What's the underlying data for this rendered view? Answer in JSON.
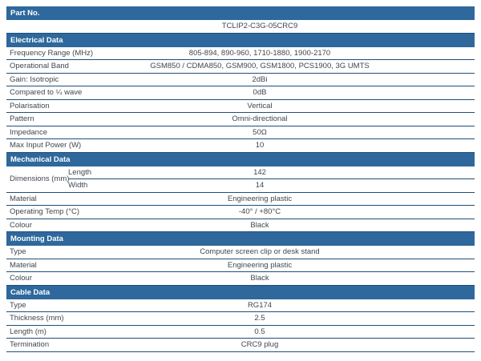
{
  "colors": {
    "header_bg": "#2E689C",
    "header_text": "#FFFFFF",
    "border": "#1F4E79",
    "text": "#40474F",
    "background": "#FFFFFF"
  },
  "table": {
    "sections": [
      {
        "title": "Part No.",
        "rows": [
          {
            "type": "full",
            "value": "TCLIP2-C3G-05CRC9"
          }
        ]
      },
      {
        "title": "Electrical Data",
        "rows": [
          {
            "label": "Frequency Range (MHz)",
            "value": "805-894, 890-960, 1710-1880, 1900-2170"
          },
          {
            "label": "Operational Band",
            "value": "GSM850 / CDMA850, GSM900, GSM1800, PCS1900, 3G UMTS"
          },
          {
            "label": "Gain: Isotropic",
            "value": "2dBi"
          },
          {
            "label": "Compared to ¼ wave",
            "value": "0dB"
          },
          {
            "label": "Polarisation",
            "value": "Vertical"
          },
          {
            "label": "Pattern",
            "value": "Omni-directional"
          },
          {
            "label": "Impedance",
            "value": "50Ω"
          },
          {
            "label": "Max Input Power (W)",
            "value": "10"
          }
        ]
      },
      {
        "title": "Mechanical Data",
        "rows": [
          {
            "type": "group",
            "label": "Dimensions (mm)",
            "subrows": [
              {
                "label": "Length",
                "value": "142"
              },
              {
                "label": "Width",
                "value": "14"
              }
            ]
          },
          {
            "label": "Material",
            "value": "Engineering plastic"
          },
          {
            "label": "Operating Temp (°C)",
            "value": "-40° / +80°C"
          },
          {
            "label": "Colour",
            "value": "Black"
          }
        ]
      },
      {
        "title": "Mounting Data",
        "rows": [
          {
            "label": "Type",
            "value": "Computer screen clip or desk stand"
          },
          {
            "label": "Material",
            "value": "Engineering plastic"
          },
          {
            "label": "Colour",
            "value": "Black"
          }
        ]
      },
      {
        "title": "Cable Data",
        "rows": [
          {
            "label": "Type",
            "value": "RG174"
          },
          {
            "label": "Thickness (mm)",
            "value": "2.5"
          },
          {
            "label": "Length (m)",
            "value": "0.5"
          },
          {
            "label": "Termination",
            "value": "CRC9 plug"
          }
        ]
      }
    ]
  }
}
